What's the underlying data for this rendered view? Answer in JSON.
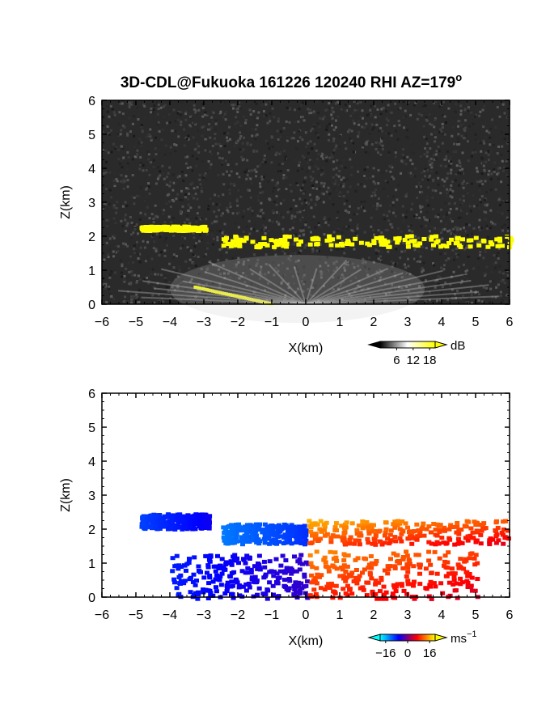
{
  "title": "3D-CDL@Fukuoka 161226 120240 RHI AZ=179",
  "title_sup": "o",
  "chart_data": [
    {
      "type": "heatmap",
      "name": "snr",
      "xlabel": "X(km)",
      "ylabel": "Z(km)",
      "xlim": [
        -6,
        6
      ],
      "ylim": [
        0,
        6
      ],
      "xticks": [
        "−6",
        "−5",
        "−4",
        "−3",
        "−2",
        "−1",
        "0",
        "1",
        "2",
        "3",
        "4",
        "5",
        "6"
      ],
      "yticks": [
        "0",
        "1",
        "2",
        "3",
        "4",
        "5",
        "6"
      ],
      "background": "noise",
      "colorbar": {
        "label": "dB",
        "sup": "",
        "ticks": [
          "6",
          "12",
          "18"
        ],
        "range": [
          0,
          20
        ],
        "colors": [
          "#000000",
          "#ffffff",
          "#ffff00"
        ]
      },
      "features": [
        {
          "kind": "layer",
          "color": "#ffff00",
          "x": [
            -4.9,
            -3.0
          ],
          "z": [
            2.18,
            2.4
          ]
        },
        {
          "kind": "layer",
          "color": "#ffff00",
          "x": [
            -2.5,
            6.0
          ],
          "z": [
            1.65,
            2.2
          ]
        },
        {
          "kind": "layer",
          "color": "#ffff00",
          "x": [
            -3.3,
            -1.0
          ],
          "z": [
            0.0,
            0.5
          ]
        },
        {
          "kind": "fan",
          "color": "#c8c8c8",
          "x": [
            -4.0,
            3.5
          ],
          "z": [
            0.0,
            1.6
          ]
        }
      ]
    },
    {
      "type": "heatmap",
      "name": "velocity",
      "xlabel": "X(km)",
      "ylabel": "Z(km)",
      "xlim": [
        -6,
        6
      ],
      "ylim": [
        0,
        6
      ],
      "xticks": [
        "−6",
        "−5",
        "−4",
        "−3",
        "−2",
        "−1",
        "0",
        "1",
        "2",
        "3",
        "4",
        "5",
        "6"
      ],
      "yticks": [
        "0",
        "1",
        "2",
        "3",
        "4",
        "5",
        "6"
      ],
      "background": "white",
      "colorbar": {
        "label": "ms",
        "sup": "−1",
        "ticks": [
          "−16",
          "0",
          "16"
        ],
        "range": [
          -20,
          20
        ],
        "colors": [
          "#00ffff",
          "#0000ff",
          "#ff0000",
          "#ffff00"
        ]
      },
      "features": [
        {
          "kind": "patch",
          "value": -10,
          "x": [
            -4.9,
            -2.9
          ],
          "z": [
            2.05,
            2.5
          ]
        },
        {
          "kind": "patch",
          "value": -13,
          "x": [
            -2.5,
            0.0
          ],
          "z": [
            1.6,
            2.2
          ]
        },
        {
          "kind": "patch",
          "value": -8,
          "x": [
            -4.0,
            0.0
          ],
          "z": [
            0.0,
            1.3
          ]
        },
        {
          "kind": "patch",
          "value": 10,
          "x": [
            0.0,
            6.0
          ],
          "z": [
            1.6,
            2.3
          ]
        },
        {
          "kind": "patch",
          "value": 8,
          "x": [
            0.0,
            5.0
          ],
          "z": [
            0.0,
            1.4
          ]
        }
      ]
    }
  ]
}
